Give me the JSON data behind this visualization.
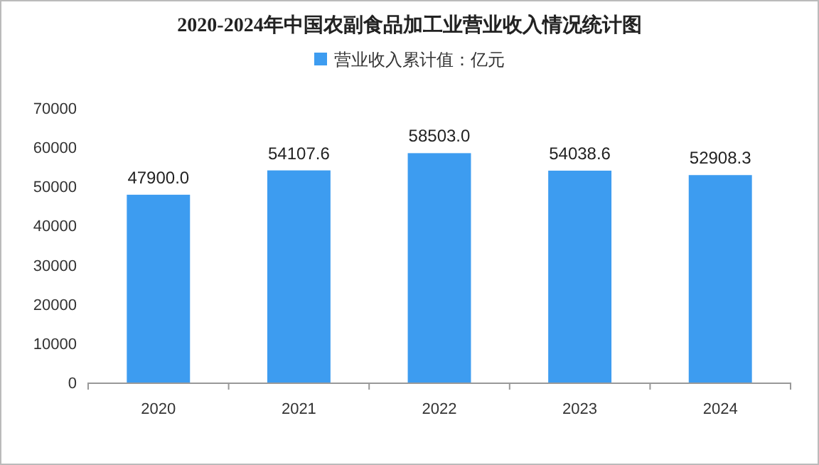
{
  "chart_data": {
    "type": "bar",
    "title": "2020-2024年中国农副食品加工业营业收入情况统计图",
    "categories": [
      "2020",
      "2021",
      "2022",
      "2023",
      "2024"
    ],
    "series": [
      {
        "name": "营业收入累计值：亿元",
        "color": "#3d9cf0",
        "values": [
          47900,
          54107.6,
          58503,
          54038.6,
          52908.3
        ],
        "value_labels": [
          "47900.0",
          "54107.6",
          "58503.0",
          "54038.6",
          "52908.3"
        ]
      }
    ],
    "ylim": [
      0,
      70000
    ],
    "yticks": [
      0,
      10000,
      20000,
      30000,
      40000,
      50000,
      60000,
      70000
    ],
    "legend": "top",
    "grid": false
  }
}
